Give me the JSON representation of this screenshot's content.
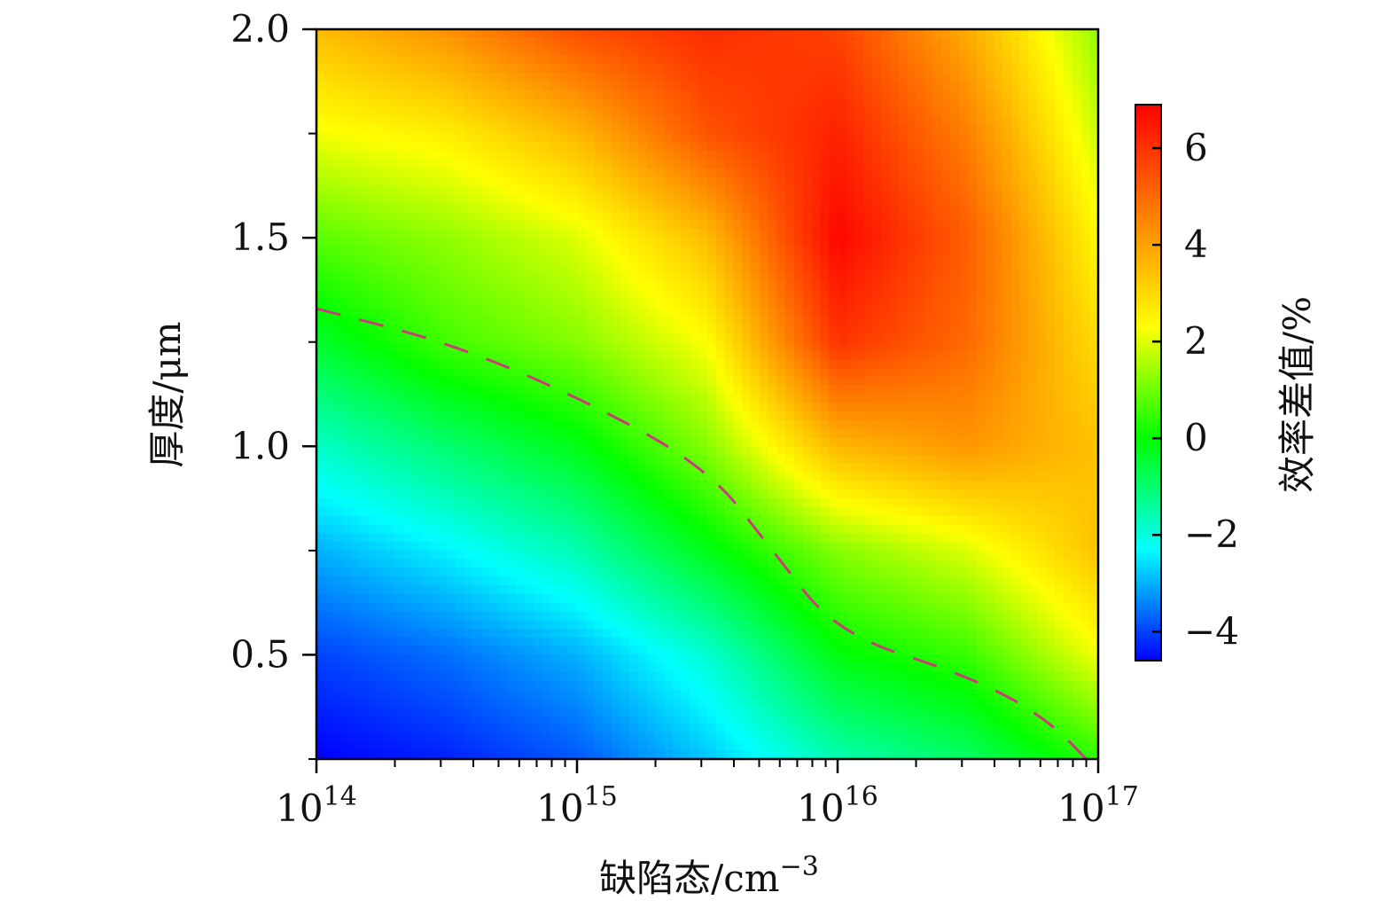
{
  "chart_data": {
    "type": "heatmap",
    "title": "",
    "xlabel": "缺陷态/cm",
    "xlabel_exponent": "−3",
    "ylabel": "厚度/μm",
    "colorbar_label": "效率差值/%",
    "x_scale": "log",
    "x_range": [
      100000000000000.0,
      1e+17
    ],
    "y_range": [
      0.25,
      2.0
    ],
    "x_tick_labels": [
      {
        "base": "10",
        "exp": "14",
        "value": 100000000000000.0
      },
      {
        "base": "10",
        "exp": "15",
        "value": 1000000000000000.0
      },
      {
        "base": "10",
        "exp": "16",
        "value": 1e+16
      },
      {
        "base": "10",
        "exp": "17",
        "value": 1e+17
      }
    ],
    "y_ticks": [
      0.5,
      1.0,
      1.5,
      2.0
    ],
    "y_tick_labels": [
      "0.5",
      "1.0",
      "1.5",
      "2.0"
    ],
    "colorbar_range": [
      -4.6,
      6.9
    ],
    "colorbar_ticks": [
      -4,
      -2,
      0,
      2,
      4,
      6
    ],
    "colorbar_tick_labels": [
      "−4",
      "−2",
      "0",
      "2",
      "4",
      "6"
    ],
    "colormap": [
      "#0000ff",
      "#00ffff",
      "#00ff00",
      "#ffff00",
      "#ff8000",
      "#ff0000"
    ],
    "contour_color": "#c83c78",
    "x_grid_log10": [
      14,
      14.5,
      15,
      15.5,
      16,
      16.5,
      17
    ],
    "y_grid": [
      0.25,
      0.5,
      0.75,
      1.0,
      1.25,
      1.5,
      1.75,
      2.0
    ],
    "z_values": [
      [
        -4.6,
        -4.3,
        -3.8,
        -2.8,
        -1.6,
        -0.9,
        0.4
      ],
      [
        -4.0,
        -3.6,
        -3.0,
        -1.9,
        -0.1,
        0.5,
        2.2
      ],
      [
        -3.0,
        -2.4,
        -1.6,
        -0.2,
        1.2,
        2.0,
        3.4
      ],
      [
        -1.8,
        -1.0,
        -0.2,
        1.2,
        3.6,
        4.2,
        3.4
      ],
      [
        -0.4,
        0.6,
        1.2,
        2.3,
        6.0,
        5.0,
        2.9
      ],
      [
        0.8,
        1.3,
        2.0,
        3.5,
        6.8,
        5.2,
        2.4
      ],
      [
        2.2,
        2.6,
        3.6,
        5.4,
        6.3,
        4.6,
        1.8
      ],
      [
        3.5,
        4.3,
        5.5,
        6.1,
        5.7,
        3.8,
        1.3
      ]
    ],
    "zero_contour": [
      [
        14,
        1.33
      ],
      [
        14.5,
        1.25
      ],
      [
        15,
        1.12
      ],
      [
        15.5,
        0.95
      ],
      [
        15.75,
        0.75
      ],
      [
        16,
        0.55
      ],
      [
        16.5,
        0.45
      ],
      [
        16.8,
        0.35
      ],
      [
        17,
        0.22
      ]
    ]
  }
}
